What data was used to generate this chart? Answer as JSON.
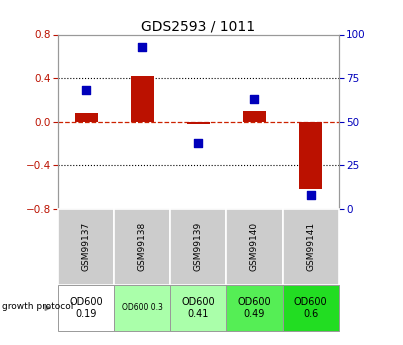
{
  "title": "GDS2593 / 1011",
  "samples": [
    "GSM99137",
    "GSM99138",
    "GSM99139",
    "GSM99140",
    "GSM99141"
  ],
  "log2_ratio": [
    0.08,
    0.42,
    -0.02,
    0.1,
    -0.62
  ],
  "percentile_rank": [
    68,
    93,
    38,
    63,
    8
  ],
  "ylim_left": [
    -0.8,
    0.8
  ],
  "ylim_right": [
    0,
    100
  ],
  "yticks_left": [
    -0.8,
    -0.4,
    0.0,
    0.4,
    0.8
  ],
  "yticks_right": [
    0,
    25,
    50,
    75,
    100
  ],
  "bar_color": "#BB1100",
  "dot_color": "#0000BB",
  "zero_line_color": "#CC2200",
  "grid_color": "#000000",
  "protocol_labels": [
    "OD600\n0.19",
    "OD600 0.3",
    "OD600\n0.41",
    "OD600\n0.49",
    "OD600\n0.6"
  ],
  "protocol_bg": [
    "#ffffff",
    "#aaffaa",
    "#aaffaa",
    "#55ee55",
    "#22dd22"
  ],
  "protocol_fontsize_main": 7,
  "protocol_fontsize_small": 5.5,
  "sample_bg": "#cccccc",
  "bar_width": 0.4,
  "dot_size": 35,
  "title_fontsize": 10,
  "tick_fontsize": 7.5
}
